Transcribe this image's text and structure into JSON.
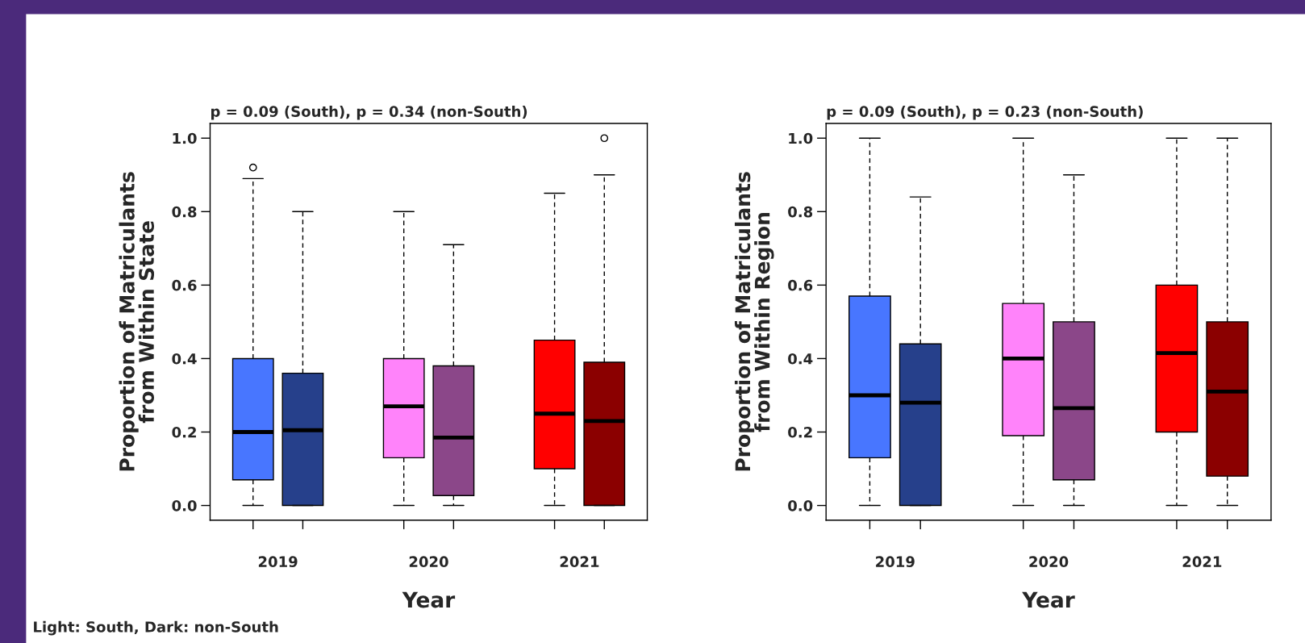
{
  "chart_data": [
    {
      "type": "box",
      "title": "p = 0.09 (South), p = 0.34 (non-South)",
      "xlabel": "Year",
      "ylabel": "Proportion of Matriculants\nfrom Within State",
      "categories": [
        "2019",
        "2020",
        "2021"
      ],
      "series": [
        {
          "colors": [
            "#4876ff",
            "#ff83fa",
            "#ff0000"
          ],
          "boxes": [
            {
              "low": 0,
              "q1": 0.07,
              "median": 0.2,
              "q3": 0.4,
              "high": 0.89,
              "outliers": [
                0.92
              ]
            },
            {
              "low": 0,
              "q1": 0.13,
              "median": 0.27,
              "q3": 0.4,
              "high": 0.8
            },
            {
              "low": 0,
              "q1": 0.1,
              "median": 0.25,
              "q3": 0.45,
              "high": 0.85
            }
          ]
        },
        {
          "colors": [
            "#26408b",
            "#8b4789",
            "#8b0000"
          ],
          "boxes": [
            {
              "low": 0,
              "q1": 0,
              "median": 0.205,
              "q3": 0.36,
              "high": 0.8
            },
            {
              "low": 0,
              "q1": 0.027,
              "median": 0.185,
              "q3": 0.38,
              "high": 0.71
            },
            {
              "low": 0,
              "q1": 0,
              "median": 0.23,
              "q3": 0.39,
              "high": 0.9,
              "outliers": [
                1.0
              ]
            }
          ]
        }
      ],
      "ylim": [
        -0.04,
        1.04
      ],
      "yticks": [
        {
          "value": 0,
          "label": "0.0"
        },
        {
          "value": 0.2,
          "label": "0.2"
        },
        {
          "value": 0.4,
          "label": "0.4"
        },
        {
          "value": 0.6,
          "label": "0.6"
        },
        {
          "value": 0.8,
          "label": "0.8"
        },
        {
          "value": 1.0,
          "label": "1.0"
        }
      ],
      "grid": false,
      "annotations": [
        "Light: South, Dark: non-South"
      ]
    },
    {
      "type": "box",
      "title": "p = 0.09 (South), p = 0.23 (non-South)",
      "xlabel": "Year",
      "ylabel": "Proportion of Matriculants\nfrom Within Region",
      "categories": [
        "2019",
        "2020",
        "2021"
      ],
      "series": [
        {
          "colors": [
            "#4876ff",
            "#ff83fa",
            "#ff0000"
          ],
          "boxes": [
            {
              "low": 0,
              "q1": 0.13,
              "median": 0.3,
              "q3": 0.57,
              "high": 1.0
            },
            {
              "low": 0,
              "q1": 0.19,
              "median": 0.4,
              "q3": 0.55,
              "high": 1.0
            },
            {
              "low": 0,
              "q1": 0.2,
              "median": 0.415,
              "q3": 0.6,
              "high": 1.0
            }
          ]
        },
        {
          "colors": [
            "#26408b",
            "#8b4789",
            "#8b0000"
          ],
          "boxes": [
            {
              "low": 0,
              "q1": 0,
              "median": 0.28,
              "q3": 0.44,
              "high": 0.84
            },
            {
              "low": 0,
              "q1": 0.07,
              "median": 0.265,
              "q3": 0.5,
              "high": 0.9
            },
            {
              "low": 0,
              "q1": 0.08,
              "median": 0.31,
              "q3": 0.5,
              "high": 1.0
            }
          ]
        }
      ],
      "ylim": [
        -0.04,
        1.04
      ],
      "yticks": [
        {
          "value": 0,
          "label": "0.0"
        },
        {
          "value": 0.2,
          "label": "0.2"
        },
        {
          "value": 0.4,
          "label": "0.4"
        },
        {
          "value": 0.6,
          "label": "0.6"
        },
        {
          "value": 0.8,
          "label": "0.8"
        },
        {
          "value": 1.0,
          "label": "1.0"
        }
      ],
      "grid": false
    }
  ]
}
